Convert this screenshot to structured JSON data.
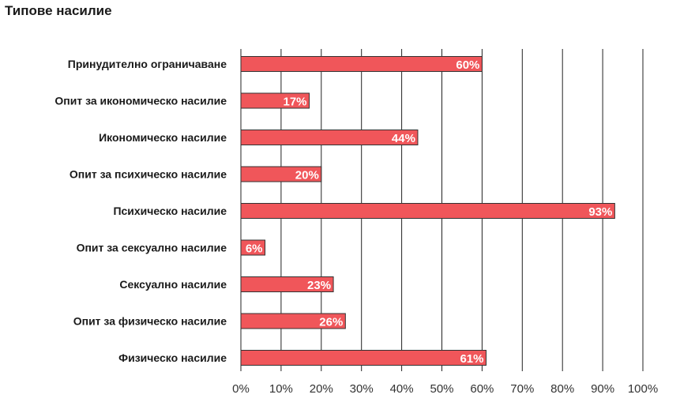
{
  "chart_data": {
    "type": "bar",
    "orientation": "horizontal",
    "title": "Типове насилие",
    "categories": [
      "Принудително ограничаване",
      "Опит за икономическо насилие",
      "Икономическо насилие",
      "Опит за психическо насилие",
      "Психическо насилие",
      "Опит за сексуално насилие",
      "Сексуално насилие",
      "Опит за физическо насилие",
      "Физическо насилие"
    ],
    "values": [
      60,
      17,
      44,
      20,
      93,
      6,
      23,
      26,
      61
    ],
    "value_labels": [
      "60%",
      "17%",
      "44%",
      "20%",
      "93%",
      "6%",
      "23%",
      "26%",
      "61%"
    ],
    "xlim": [
      0,
      100
    ],
    "xticks": [
      0,
      10,
      20,
      30,
      40,
      50,
      60,
      70,
      80,
      90,
      100
    ],
    "xtick_labels": [
      "0%",
      "10%",
      "20%",
      "30%",
      "40%",
      "50%",
      "60%",
      "70%",
      "80%",
      "90%",
      "100%"
    ],
    "xlabel": "",
    "ylabel": "",
    "grid": "vertical",
    "bar_color": "#f0565a",
    "bar_edge_color": "#333333",
    "grid_color": "#222222"
  }
}
